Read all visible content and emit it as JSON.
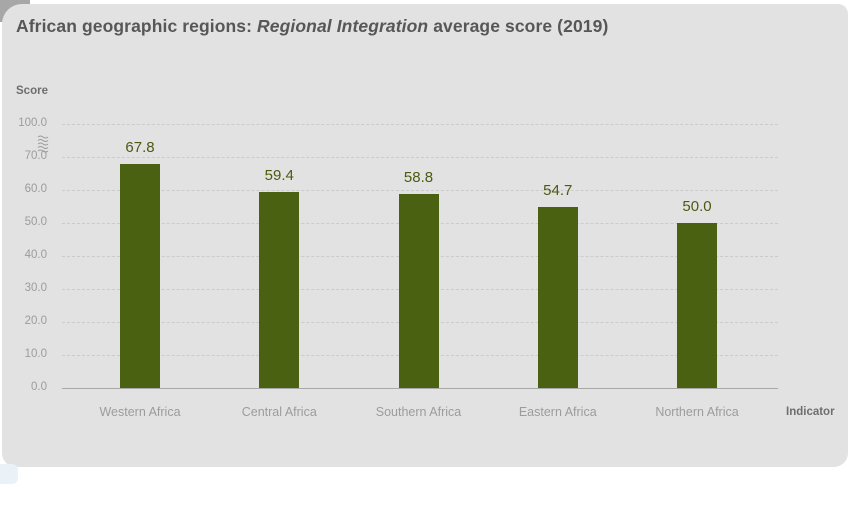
{
  "card": {
    "title": {
      "prefix": "African geographic regions: ",
      "italic": "Regional Integration",
      "suffix": " average score (2019)"
    }
  },
  "chart_data": {
    "type": "bar",
    "title": "African geographic regions: Regional Integration average score (2019)",
    "categories": [
      "Western Africa",
      "Central Africa",
      "Southern Africa",
      "Eastern Africa",
      "Northern Africa"
    ],
    "values": [
      67.8,
      59.4,
      58.8,
      54.7,
      50.0
    ],
    "value_labels": [
      "67.8",
      "59.4",
      "58.8",
      "54.7",
      "50.0"
    ],
    "ylabel": "Score",
    "xlabel": "Indicator",
    "ylim": [
      0,
      100
    ],
    "yticks": [
      0,
      10,
      20,
      30,
      40,
      50,
      60,
      70,
      100
    ],
    "ytick_labels": [
      "0.0",
      "10.0",
      "20.0",
      "30.0",
      "40.0",
      "50.0",
      "60.0",
      "70.0",
      "100.0"
    ],
    "axis_break": true,
    "axis_break_between": [
      70,
      100
    ],
    "grid": "horizontal dashed, solid zero baseline",
    "legend": "none",
    "bar_color": "#4b6112",
    "value_label_color": "#495b10",
    "background_color": "#e2e2e2"
  }
}
